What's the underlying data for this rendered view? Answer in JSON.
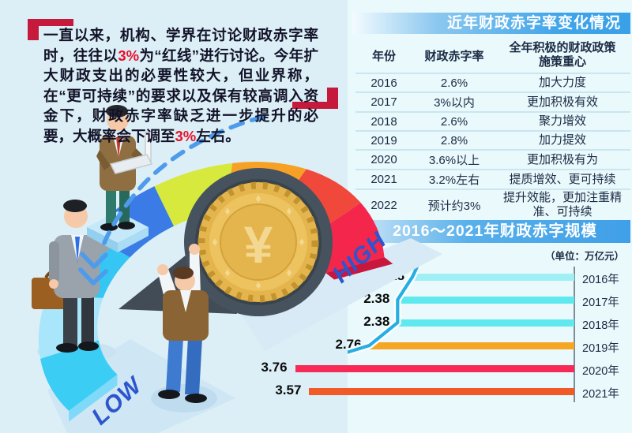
{
  "intro": {
    "part1": "一直以来，机构、学界在讨论财政赤字率时，往往以",
    "red1": "3%",
    "part2": "为“红线”进行讨论。今年扩大财政支出的必要性较大，但业界称，在“更可持续”的要求以及保有较高调入资金下，财政赤字率缺乏进一步提升的必要，大概率会下调至",
    "red2": "3%",
    "part3": "左右。"
  },
  "table": {
    "title": "近年财政赤字率变化情况",
    "headers": [
      "年份",
      "财政赤字率",
      "全年积极的财政政策\n施策重心"
    ],
    "rows": [
      {
        "year": "2016",
        "rate": "2.6%",
        "policy": "加大力度"
      },
      {
        "year": "2017",
        "rate": "3%以内",
        "policy": "更加积极有效"
      },
      {
        "year": "2018",
        "rate": "2.6%",
        "policy": "聚力增效"
      },
      {
        "year": "2019",
        "rate": "2.8%",
        "policy": "加力提效"
      },
      {
        "year": "2020",
        "rate": "3.6%以上",
        "policy": "更加积极有为"
      },
      {
        "year": "2021",
        "rate": "3.2%左右",
        "policy": "提质增效、更可持续"
      },
      {
        "year": "2022",
        "rate": "预计约3%",
        "policy": "提升效能，更加注重精准、可持续"
      }
    ]
  },
  "chart_data": {
    "type": "bar",
    "orientation": "horizontal",
    "title": "2016～2021年财政赤字规模",
    "unit": "（单位：万亿元）",
    "categories": [
      "2016年",
      "2017年",
      "2018年",
      "2019年",
      "2020年",
      "2021年"
    ],
    "values": [
      2.18,
      2.38,
      2.38,
      2.76,
      3.76,
      3.57
    ],
    "value_labels": [
      "2.18",
      "2.38",
      "2.38",
      "2.76",
      "3.76",
      "3.57"
    ],
    "bar_colors": [
      "#9FF0F5",
      "#5FE9EF",
      "#5FE9EF",
      "#F7A623",
      "#F72A57",
      "#F15A26"
    ],
    "trend_line_color": "#25AEE5",
    "axis_side": "right",
    "xlim": [
      0,
      3.8
    ]
  },
  "illustration": {
    "low_label": "LOW",
    "high_label": "HIGH",
    "coin_symbol": "¥"
  },
  "colors": {
    "accent_red": "#C51A3C",
    "highlight_red": "#E8112D",
    "header_blue": "#3FA4E9",
    "label_blue": "#2D55CE",
    "background": "#DCEFF6"
  }
}
